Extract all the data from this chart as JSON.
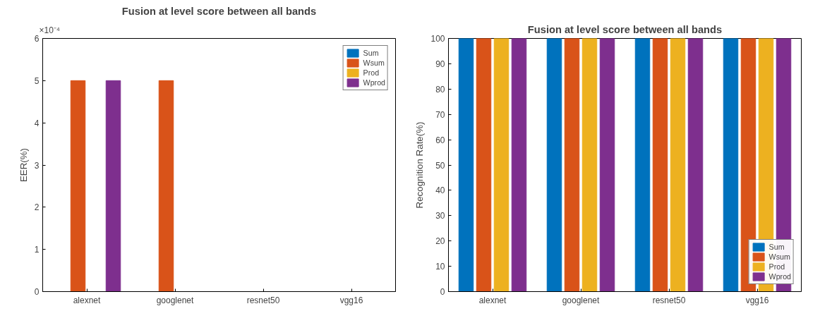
{
  "chart_data": [
    {
      "type": "bar",
      "title": "Fusion at level score between all bands",
      "ylabel": "EER(%)",
      "categories": [
        "alexnet",
        "googlenet",
        "resnet50",
        "vgg16"
      ],
      "series": [
        {
          "name": "Sum",
          "color": "#0072bd",
          "values": [
            0,
            0,
            0,
            0
          ]
        },
        {
          "name": "Wsum",
          "color": "#d95319",
          "values": [
            5,
            5,
            0,
            0
          ]
        },
        {
          "name": "Prod",
          "color": "#edb120",
          "values": [
            0,
            0,
            0,
            0
          ]
        },
        {
          "name": "Wprod",
          "color": "#7e2f8e",
          "values": [
            5,
            0,
            0,
            0
          ]
        }
      ],
      "ylim": [
        0,
        6
      ],
      "yticks": [
        0,
        1,
        2,
        3,
        4,
        5,
        6
      ],
      "annotations": [
        "×10⁻⁴"
      ],
      "legend": "top right",
      "grid": false
    },
    {
      "type": "bar",
      "title": "Fusion at level score between all bands",
      "ylabel": "Recognition Rate(%)",
      "categories": [
        "alexnet",
        "googlenet",
        "resnet50",
        "vgg16"
      ],
      "series": [
        {
          "name": "Sum",
          "color": "#0072bd",
          "values": [
            100,
            100,
            100,
            100
          ]
        },
        {
          "name": "Wsum",
          "color": "#d95319",
          "values": [
            100,
            100,
            100,
            100
          ]
        },
        {
          "name": "Prod",
          "color": "#edb120",
          "values": [
            100,
            100,
            100,
            100
          ]
        },
        {
          "name": "Wprod",
          "color": "#7e2f8e",
          "values": [
            100,
            100,
            100,
            100
          ]
        }
      ],
      "ylim": [
        0,
        100
      ],
      "yticks": [
        0,
        10,
        20,
        30,
        40,
        50,
        60,
        70,
        80,
        90,
        100
      ],
      "legend": "bottom right",
      "grid": false
    }
  ]
}
